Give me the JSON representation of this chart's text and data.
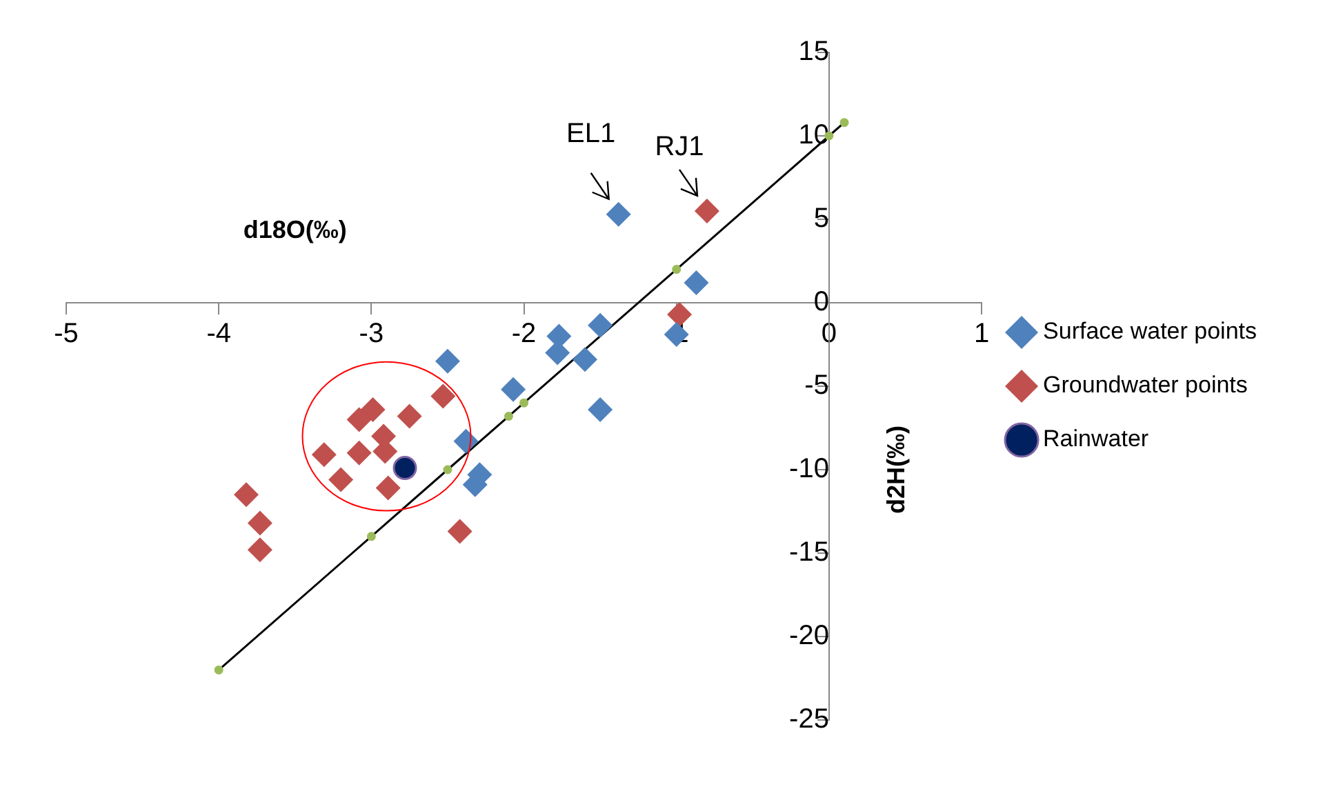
{
  "chart_data": {
    "type": "scatter",
    "xlabel": "d18O(‰)",
    "ylabel": "d2H(‰)",
    "xlim": [
      -5,
      1
    ],
    "ylim": [
      -25,
      15
    ],
    "xticks": [
      -5,
      -4,
      -3,
      -2,
      -1,
      0,
      1
    ],
    "yticks": [
      -25,
      -20,
      -15,
      -10,
      -5,
      0,
      5,
      10,
      15
    ],
    "grid": false,
    "legend": "right",
    "series": [
      {
        "name": "Surface water points",
        "color": "#4f81bd",
        "marker": "diamond",
        "x": [
          -1.38,
          -0.87,
          -1.0,
          -1.5,
          -1.77,
          -1.78,
          -1.6,
          -1.5,
          -2.07,
          -2.5,
          -2.38,
          -2.29,
          -2.32
        ],
        "values": [
          5.3,
          1.2,
          -1.9,
          -1.35,
          -2.0,
          -3.0,
          -3.4,
          -6.4,
          -5.2,
          -3.5,
          -8.3,
          -10.3,
          -10.9
        ]
      },
      {
        "name": "Groundwater points",
        "color": "#c0504d",
        "marker": "diamond",
        "x": [
          -0.8,
          -0.98,
          -2.53,
          -2.75,
          -2.99,
          -3.08,
          -2.92,
          -3.31,
          -3.08,
          -2.91,
          -3.2,
          -2.89,
          -3.82,
          -3.73,
          -3.73,
          -2.42
        ],
        "values": [
          5.5,
          -0.7,
          -5.6,
          -6.8,
          -6.4,
          -7.0,
          -8.0,
          -9.1,
          -9.0,
          -8.9,
          -10.6,
          -11.1,
          -11.5,
          -13.2,
          -14.8,
          -13.7
        ]
      },
      {
        "name": "Rainwater",
        "color": "#002060",
        "marker": "circle",
        "x": [
          -2.78
        ],
        "values": [
          -9.9
        ]
      },
      {
        "type": "line",
        "color": "#000000",
        "marker": "circle",
        "x": [
          -4,
          -3,
          -2.5,
          -2.1,
          -2,
          -1,
          0,
          0.1
        ],
        "values": [
          -22,
          -14,
          -10,
          -6.8,
          -6,
          2,
          10,
          10.8
        ]
      }
    ],
    "annotations": [
      {
        "text": "EL1",
        "x": -1.38,
        "y": 5.3
      },
      {
        "text": "RJ1",
        "x": -0.8,
        "y": 5.5
      }
    ]
  }
}
